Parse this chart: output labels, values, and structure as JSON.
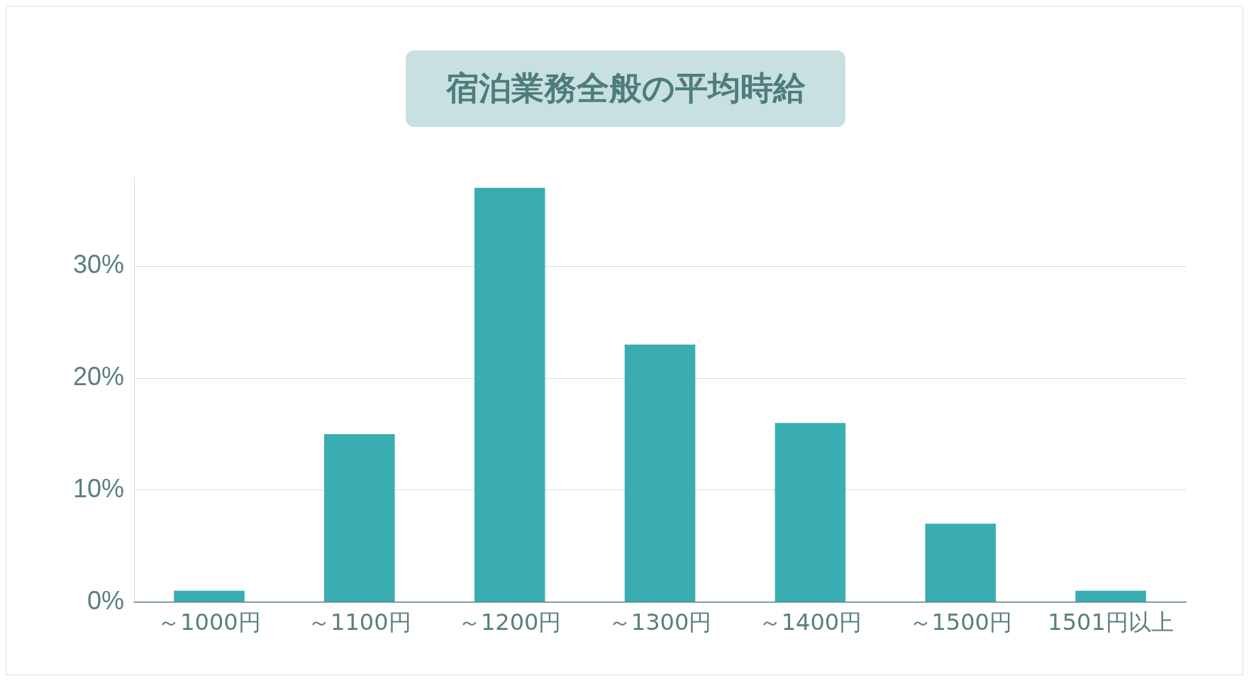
{
  "chart_data": {
    "type": "bar",
    "title": "宿泊業務全般の平均時給",
    "categories": [
      "～1000円",
      "～1100円",
      "～1200円",
      "～1300円",
      "～1400円",
      "～1500円",
      "1501円以上"
    ],
    "values": [
      1,
      15,
      37,
      23,
      16,
      7,
      1
    ],
    "color": "#3aadb2",
    "ylim": [
      0,
      38
    ],
    "yticks": [
      {
        "value": 0,
        "label": "0%"
      },
      {
        "value": 10,
        "label": "10%"
      },
      {
        "value": 20,
        "label": "20%"
      },
      {
        "value": 30,
        "label": "30%"
      }
    ],
    "grid": "y",
    "legend": false
  }
}
